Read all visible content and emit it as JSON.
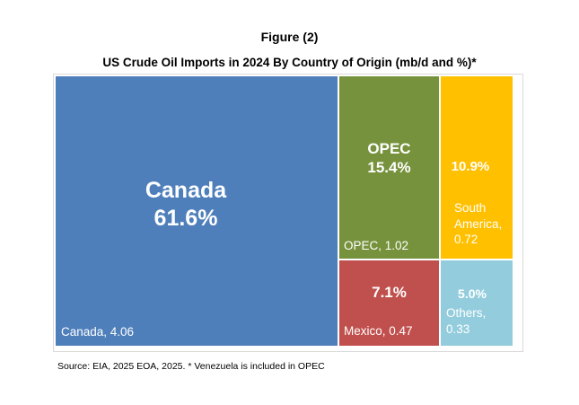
{
  "figure_label": "Figure (2)",
  "chart_data": {
    "type": "treemap",
    "title": "US Crude Oil Imports in 2024 By Country of Origin (mb/d and %)*",
    "units": "mb/d",
    "items": [
      {
        "name": "Canada",
        "value": 4.06,
        "percent": "61.6%",
        "label": "Canada, 4.06",
        "color": "#4e7fbb"
      },
      {
        "name": "OPEC",
        "value": 1.02,
        "percent": "15.4%",
        "label": "OPEC, 1.02",
        "color": "#76923c"
      },
      {
        "name": "South America",
        "value": 0.72,
        "percent": "10.9%",
        "label": "South America, 0.72",
        "color": "#ffc000"
      },
      {
        "name": "Mexico",
        "value": 0.47,
        "percent": "7.1%",
        "label": "Mexico, 0.47",
        "color": "#c0504d"
      },
      {
        "name": "Others",
        "value": 0.33,
        "percent": "5.0%",
        "label": "Others, 0.33",
        "color": "#93cddd"
      }
    ],
    "tile_headings": {
      "canada": "Canada",
      "opec": "OPEC"
    },
    "label_lines": {
      "south_america": [
        "South",
        "America,",
        "0.72"
      ],
      "others": [
        "Others,",
        "0.33"
      ]
    }
  },
  "source_note": "Source: EIA, 2025  EOA, 2025. * Venezuela is included in OPEC"
}
